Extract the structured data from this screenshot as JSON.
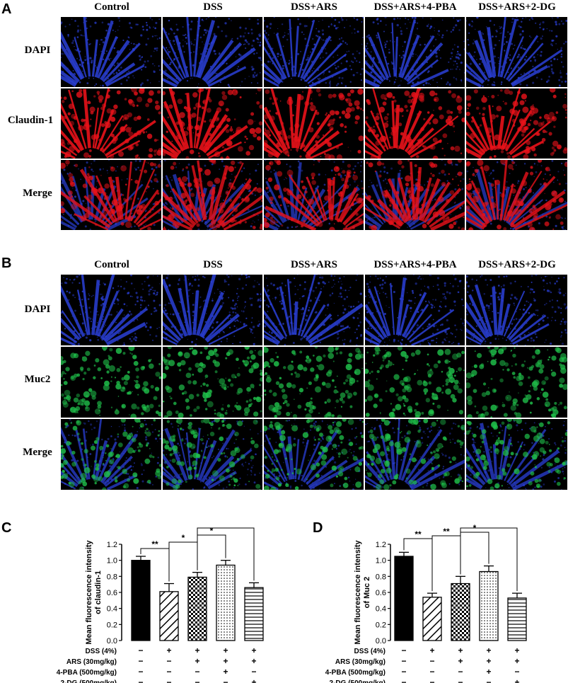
{
  "panel_a": {
    "letter": "A",
    "columns": [
      "Control",
      "DSS",
      "DSS+ARS",
      "DSS+ARS+4-PBA",
      "DSS+ARS+2-DG"
    ],
    "rows": [
      "DAPI",
      "Claudin-1",
      "Merge"
    ]
  },
  "panel_b": {
    "letter": "B",
    "columns": [
      "Control",
      "DSS",
      "DSS+ARS",
      "DSS+ARS+4-PBA",
      "DSS+ARS+2-DG"
    ],
    "rows": [
      "DAPI",
      "Muc2",
      "Merge"
    ]
  },
  "colors": {
    "dapi_blue": "#2a3fd6",
    "claudin_red": "#e8121a",
    "muc2_green": "#1fbf4a",
    "background": "#000000"
  },
  "panel_c": {
    "letter": "C",
    "chart_data": {
      "type": "bar",
      "ylabel": "Mean fluorescence intensity of claudin-1",
      "ylim": [
        0,
        1.2
      ],
      "yticks": [
        "0.0",
        "0.2",
        "0.4",
        "0.6",
        "0.8",
        "1.0",
        "1.2"
      ],
      "values": [
        1.0,
        0.61,
        0.79,
        0.94,
        0.66
      ],
      "errors": [
        0.05,
        0.1,
        0.06,
        0.06,
        0.06
      ],
      "patterns": [
        "solid",
        "diagonal",
        "checker",
        "dots",
        "horizontal"
      ],
      "significance": [
        {
          "from": 0,
          "to": 1,
          "label": "**"
        },
        {
          "from": 1,
          "to": 2,
          "label": "*"
        },
        {
          "from": 2,
          "to": 3,
          "label": "*"
        },
        {
          "from": 2,
          "to": 4,
          "label": "*"
        }
      ],
      "treatments": [
        {
          "label": "DSS (4%)",
          "signs": [
            "−",
            "+",
            "+",
            "+",
            "+"
          ]
        },
        {
          "label": "ARS (30mg/kg)",
          "signs": [
            "−",
            "−",
            "+",
            "+",
            "+"
          ]
        },
        {
          "label": "4-PBA (500mg/kg)",
          "signs": [
            "−",
            "−",
            "−",
            "+",
            "−"
          ]
        },
        {
          "label": "2-DG (500mg/kg)",
          "signs": [
            "−",
            "−",
            "−",
            "−",
            "+"
          ]
        }
      ]
    }
  },
  "panel_d": {
    "letter": "D",
    "chart_data": {
      "type": "bar",
      "ylabel": "Mean fluorescence intensity of Muc 2",
      "ylim": [
        0,
        1.2
      ],
      "yticks": [
        "0.0",
        "0.2",
        "0.4",
        "0.6",
        "0.8",
        "1.0",
        "1.2"
      ],
      "values": [
        1.05,
        0.54,
        0.71,
        0.86,
        0.53
      ],
      "errors": [
        0.05,
        0.05,
        0.09,
        0.07,
        0.06
      ],
      "patterns": [
        "solid",
        "diagonal",
        "checker",
        "dots",
        "horizontal"
      ],
      "significance": [
        {
          "from": 0,
          "to": 1,
          "label": "**"
        },
        {
          "from": 1,
          "to": 2,
          "label": "**"
        },
        {
          "from": 2,
          "to": 3,
          "label": "*"
        },
        {
          "from": 2,
          "to": 4,
          "label": "**"
        }
      ],
      "treatments": [
        {
          "label": "DSS (4%)",
          "signs": [
            "−",
            "+",
            "+",
            "+",
            "+"
          ]
        },
        {
          "label": "ARS (30mg/kg)",
          "signs": [
            "−",
            "−",
            "+",
            "+",
            "+"
          ]
        },
        {
          "label": "4-PBA (500mg/kg)",
          "signs": [
            "−",
            "−",
            "−",
            "+",
            "−"
          ]
        },
        {
          "label": "2-DG (500mg/kg)",
          "signs": [
            "−",
            "−",
            "−",
            "−",
            "+"
          ]
        }
      ]
    }
  }
}
